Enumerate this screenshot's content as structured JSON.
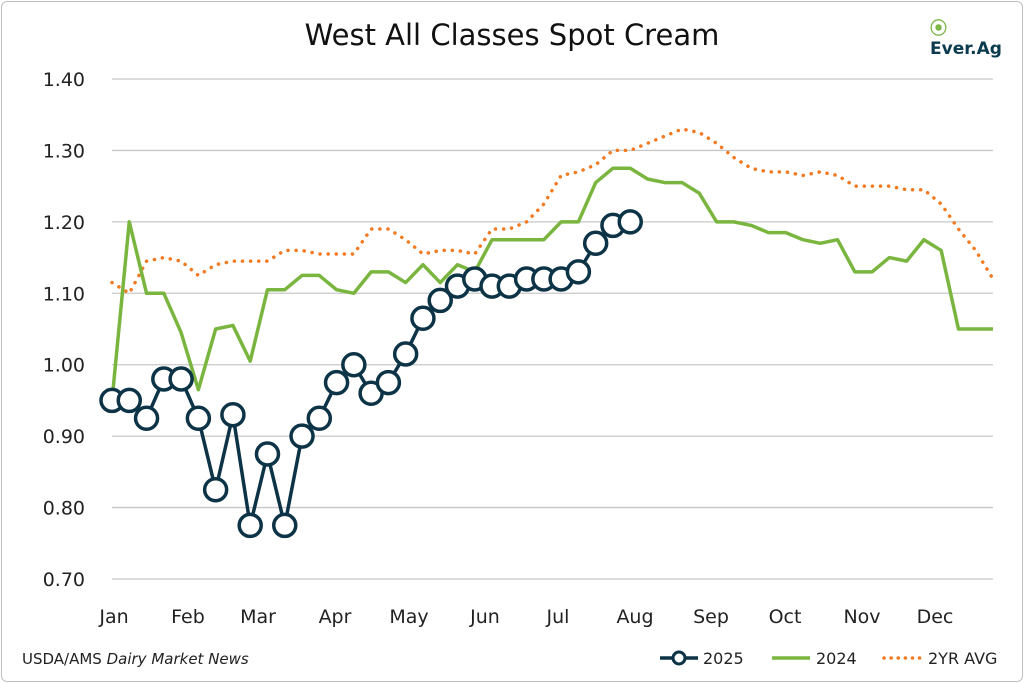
{
  "logo": {
    "text": "Ever.Ag"
  },
  "source": {
    "prefix": "USDA/AMS ",
    "italic": "Dairy Market News"
  },
  "colors": {
    "s2025": "#0d3347",
    "s2024": "#7ab63f",
    "avg": "#f07b22",
    "grid": "#c8c8c8"
  },
  "chart_data": {
    "type": "line",
    "title": "West All Classes Spot Cream",
    "xlabel": "",
    "ylabel": "",
    "ylim": [
      0.7,
      1.4
    ],
    "yticks": [
      "0.70",
      "0.80",
      "0.90",
      "1.00",
      "1.10",
      "1.20",
      "1.30",
      "1.40"
    ],
    "xtick_labels": [
      "Jan",
      "Feb",
      "Mar",
      "Apr",
      "May",
      "Jun",
      "Jul",
      "Aug",
      "Sep",
      "Oct",
      "Nov",
      "Dec"
    ],
    "x": "week of year (1-52)",
    "grid": true,
    "legend": "bottom-right",
    "series": [
      {
        "name": "2025",
        "marker": "circle",
        "values": [
          0.95,
          0.95,
          0.925,
          0.98,
          0.98,
          0.925,
          0.825,
          0.93,
          0.775,
          0.875,
          0.775,
          0.9,
          0.925,
          0.975,
          1.0,
          0.96,
          0.975,
          1.015,
          1.065,
          1.09,
          1.11,
          1.12,
          1.11,
          1.11,
          1.12,
          1.12,
          1.12,
          1.13,
          1.17,
          1.195,
          1.2
        ]
      },
      {
        "name": "2024",
        "values": [
          0.95,
          1.2,
          1.1,
          1.1,
          1.045,
          0.965,
          1.05,
          1.055,
          1.005,
          1.105,
          1.105,
          1.125,
          1.125,
          1.105,
          1.1,
          1.13,
          1.13,
          1.115,
          1.14,
          1.115,
          1.14,
          1.13,
          1.175,
          1.175,
          1.175,
          1.175,
          1.2,
          1.2,
          1.255,
          1.275,
          1.275,
          1.26,
          1.255,
          1.255,
          1.24,
          1.2,
          1.2,
          1.195,
          1.185,
          1.185,
          1.175,
          1.17,
          1.175,
          1.13,
          1.13,
          1.15,
          1.145,
          1.175,
          1.16,
          1.05,
          1.05,
          1.05
        ]
      },
      {
        "name": "2YR AVG",
        "style": "dotted",
        "values": [
          1.115,
          1.1,
          1.145,
          1.15,
          1.145,
          1.125,
          1.14,
          1.145,
          1.145,
          1.145,
          1.16,
          1.16,
          1.155,
          1.155,
          1.155,
          1.19,
          1.19,
          1.175,
          1.155,
          1.16,
          1.16,
          1.155,
          1.19,
          1.19,
          1.2,
          1.225,
          1.265,
          1.27,
          1.28,
          1.3,
          1.3,
          1.31,
          1.32,
          1.33,
          1.325,
          1.31,
          1.29,
          1.275,
          1.27,
          1.27,
          1.265,
          1.27,
          1.265,
          1.25,
          1.25,
          1.25,
          1.245,
          1.245,
          1.225,
          1.19,
          1.16,
          1.12
        ]
      }
    ]
  }
}
